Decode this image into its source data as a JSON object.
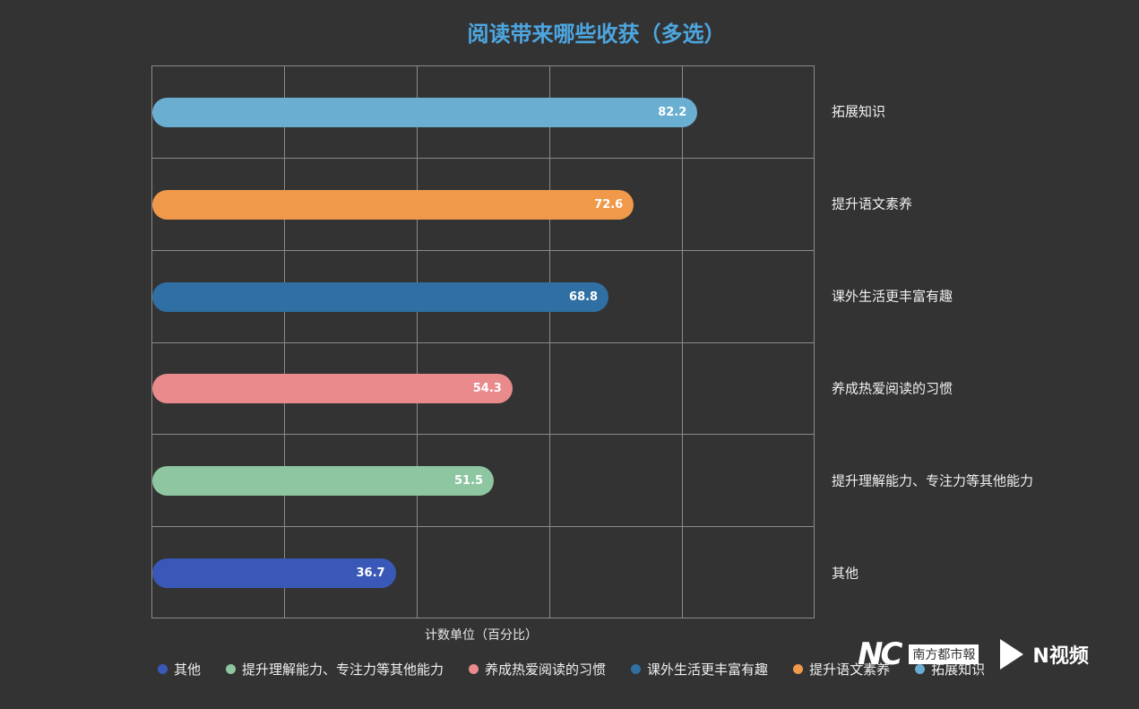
{
  "chart_data": {
    "type": "bar",
    "orientation": "horizontal",
    "title": "阅读带来哪些收获（多选）",
    "xlabel": "计数单位（百分比）",
    "ylabel": "",
    "xlim": [
      0,
      100
    ],
    "grid": true,
    "grid_step": 20,
    "categories": [
      "拓展知识",
      "提升语文素养",
      "课外生活更丰富有趣",
      "养成热爱阅读的习惯",
      "提升理解能力、专注力等其他能力",
      "其他"
    ],
    "values": [
      82.2,
      72.6,
      68.8,
      54.3,
      51.5,
      36.7
    ],
    "colors": [
      "#6aaed1",
      "#f0994a",
      "#2f6fa3",
      "#e98a8c",
      "#8dc6a0",
      "#3a58b8"
    ],
    "legend_position": "bottom",
    "legend": [
      "其他",
      "提升理解能力、专注力等其他能力",
      "养成热爱阅读的习惯",
      "课外生活更丰富有趣",
      "提升语文素养",
      "拓展知识"
    ],
    "legend_colors": [
      "#3a58b8",
      "#8dc6a0",
      "#e98a8c",
      "#2f6fa3",
      "#f0994a",
      "#6aaed1"
    ]
  },
  "watermark": {
    "logo": "NC",
    "paper": "南方都市報",
    "video": "N视频"
  }
}
